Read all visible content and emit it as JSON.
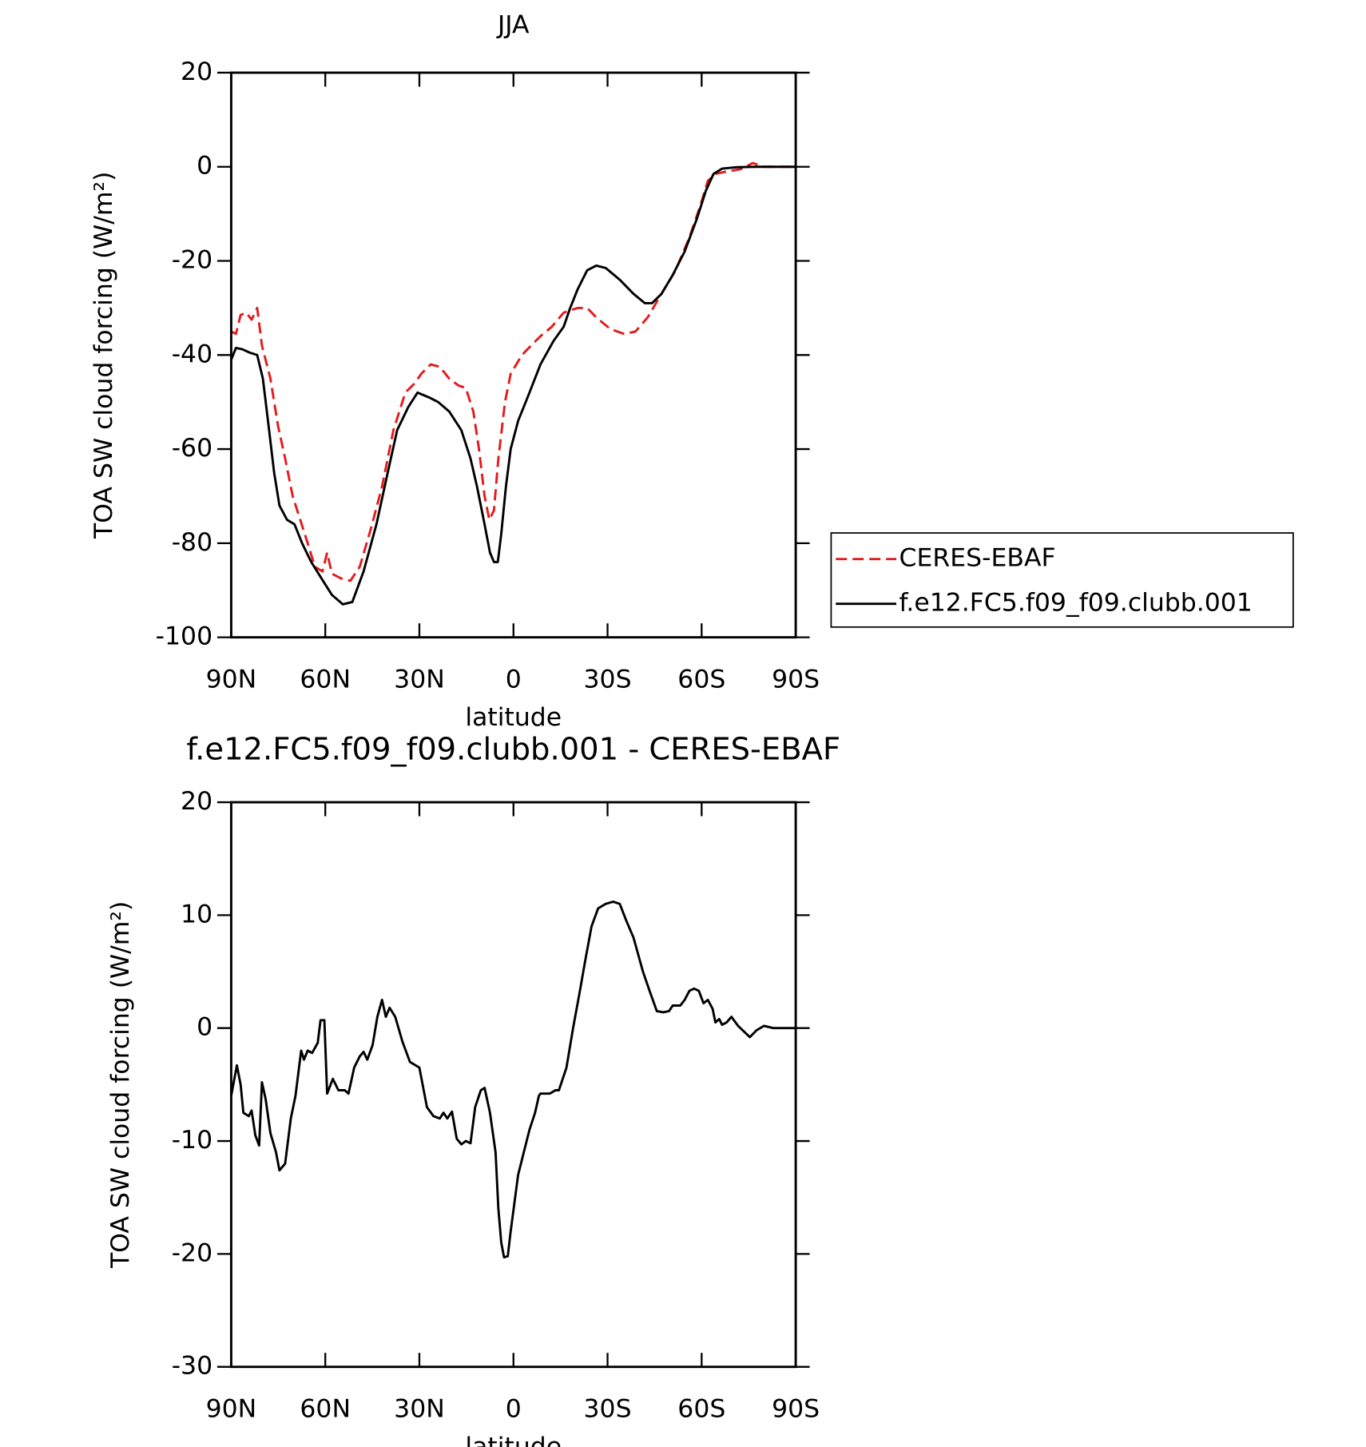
{
  "chart_data": [
    {
      "type": "line",
      "title": "JJA",
      "xlabel": "latitude",
      "ylabel": "TOA SW cloud forcing (W/m²)",
      "xlim": [
        90,
        -90
      ],
      "xticks": [
        {
          "value": 90,
          "label": "90N"
        },
        {
          "value": 60,
          "label": "60N"
        },
        {
          "value": 30,
          "label": "30N"
        },
        0,
        {
          "value": -30,
          "label": "30S"
        },
        {
          "value": -60,
          "label": "60S"
        },
        {
          "value": -90,
          "label": "90S"
        }
      ],
      "ylim": [
        -100,
        20
      ],
      "yticks": [
        -100,
        -80,
        -60,
        -40,
        -20,
        0,
        20
      ],
      "legend": "right",
      "series": [
        {
          "name": "CERES-EBAF",
          "color": "#e41a1c",
          "linestyle": "dashed",
          "x": [
            90,
            88.5,
            87,
            85.2,
            83.5,
            81.7,
            80.2,
            77.5,
            75.1,
            72.8,
            70.4,
            68,
            65.6,
            63.3,
            60.9,
            59.4,
            57.9,
            54.9,
            52,
            49,
            45.5,
            41.9,
            38.3,
            34.5,
            31.5,
            29.4,
            26.4,
            23.5,
            20.5,
            17.5,
            15.2,
            12.8,
            11,
            9.2,
            7.7,
            6.2,
            4.8,
            2.7,
            0.9,
            -2.7,
            -5.6,
            -8.6,
            -12.2,
            -16,
            -20.5,
            -23.5,
            -26.4,
            -30.9,
            -35.3,
            -38.9,
            -42.8,
            -47.2,
            -51.7,
            -56.1,
            -59.7,
            -62,
            -64.4,
            -68,
            -72.5,
            -76.3,
            -79.9,
            -90
          ],
          "values": [
            -35,
            -35.5,
            -31.5,
            -31,
            -32.5,
            -30,
            -38,
            -45,
            -55,
            -62,
            -70,
            -75,
            -80,
            -85,
            -86,
            -82,
            -86.5,
            -87.5,
            -88,
            -85,
            -77,
            -68,
            -56,
            -48,
            -46,
            -44,
            -42,
            -42.5,
            -45,
            -46.5,
            -47,
            -52,
            -60,
            -70,
            -75,
            -73,
            -62,
            -50,
            -44,
            -40,
            -38,
            -36,
            -34,
            -31,
            -30,
            -30,
            -32,
            -34.5,
            -35.5,
            -35,
            -32,
            -27,
            -22,
            -15,
            -8,
            -3,
            -1.5,
            -1,
            -0.5,
            0.8,
            0,
            0
          ]
        },
        {
          "name": "f.e12.FC5.f09_f09.clubb.001",
          "color": "#000000",
          "linestyle": "solid",
          "x": [
            90,
            88.5,
            86.4,
            84.1,
            81.7,
            79.9,
            78.1,
            76.3,
            74.6,
            72.2,
            69.8,
            67.4,
            64.5,
            61.2,
            57.9,
            54.4,
            51.4,
            47.8,
            43.7,
            40.1,
            37.1,
            33.5,
            30.6,
            27,
            24,
            20.5,
            16.6,
            13.7,
            11.6,
            9.2,
            7.5,
            6.2,
            5,
            3.9,
            2.4,
            0.9,
            -1.5,
            -4.5,
            -8.6,
            -12.8,
            -16,
            -18.1,
            -20.5,
            -23.5,
            -26.4,
            -29.4,
            -33.9,
            -38.3,
            -41.9,
            -44.2,
            -47.2,
            -50.8,
            -54.6,
            -58.5,
            -61.4,
            -63.8,
            -66.5,
            -71,
            -77,
            -90
          ],
          "values": [
            -41,
            -38.5,
            -38.8,
            -39.5,
            -40,
            -45,
            -55,
            -65,
            -72,
            -75,
            -76,
            -80,
            -84,
            -87.5,
            -91,
            -93,
            -92.5,
            -86,
            -76,
            -65,
            -56,
            -51,
            -48,
            -49,
            -50,
            -52,
            -56,
            -62,
            -68,
            -76,
            -82,
            -84,
            -84,
            -78,
            -68,
            -60,
            -54,
            -49,
            -42,
            -37,
            -34,
            -30,
            -26,
            -22,
            -21,
            -21.5,
            -24,
            -27,
            -29,
            -29,
            -27,
            -23,
            -18,
            -11,
            -5,
            -1.5,
            -0.4,
            -0.1,
            0,
            0
          ]
        }
      ]
    },
    {
      "type": "line",
      "title": "f.e12.FC5.f09_f09.clubb.001 - CERES-EBAF",
      "xlabel": "latitude",
      "ylabel": "TOA SW cloud forcing (W/m²)",
      "xlim": [
        90,
        -90
      ],
      "xticks": [
        {
          "value": 90,
          "label": "90N"
        },
        {
          "value": 60,
          "label": "60N"
        },
        {
          "value": 30,
          "label": "30N"
        },
        0,
        {
          "value": -30,
          "label": "30S"
        },
        {
          "value": -60,
          "label": "60S"
        },
        {
          "value": -90,
          "label": "90S"
        }
      ],
      "ylim": [
        -30,
        20
      ],
      "yticks": [
        -30,
        -20,
        -10,
        0,
        10,
        20
      ],
      "color": "#000000",
      "x": [
        90,
        88.2,
        87,
        86.1,
        84.4,
        83.5,
        82.3,
        81.1,
        80.2,
        79,
        77.5,
        75.7,
        74.6,
        72.8,
        71,
        69.5,
        67.7,
        66.8,
        65.6,
        64.2,
        62.4,
        61.5,
        60.3,
        59.4,
        57.6,
        55.8,
        53.8,
        52.6,
        50.8,
        49,
        47.8,
        46.6,
        44.9,
        43.4,
        41.9,
        40.7,
        39.5,
        37.7,
        35.4,
        33,
        30,
        27.6,
        25.5,
        23.5,
        22.3,
        21.1,
        19.6,
        18.1,
        16.6,
        15.2,
        13.7,
        12.2,
        10.4,
        9.2,
        7.5,
        5.7,
        4.8,
        3.9,
        3,
        1.8,
        0.9,
        -0.3,
        -1.5,
        -3.3,
        -5.1,
        -6.9,
        -8.1,
        -8.6,
        -11.6,
        -13.4,
        -14.5,
        -16.9,
        -19,
        -21,
        -22.9,
        -24.9,
        -27,
        -29.4,
        -31.8,
        -33.9,
        -36,
        -38.3,
        -41.3,
        -43.4,
        -45.7,
        -47.8,
        -49.6,
        -50.8,
        -53.2,
        -54.6,
        -56.1,
        -57.6,
        -59.1,
        -60.6,
        -62,
        -63.5,
        -64.4,
        -65.6,
        -66.5,
        -68,
        -69.5,
        -71.6,
        -75.4,
        -77.5,
        -79.9,
        -82.8,
        -90
      ],
      "values": [
        -6,
        -3.3,
        -5,
        -7.5,
        -7.8,
        -7.3,
        -9.5,
        -10.4,
        -4.8,
        -6.3,
        -9.3,
        -11,
        -12.6,
        -12,
        -8,
        -6,
        -2,
        -2.8,
        -2,
        -2.2,
        -1.3,
        0.7,
        0.7,
        -5.8,
        -4.5,
        -5.5,
        -5.5,
        -5.8,
        -3.5,
        -2.5,
        -2.1,
        -2.8,
        -1.5,
        1,
        2.5,
        1,
        1.8,
        1,
        -1.2,
        -3,
        -3.5,
        -7,
        -7.8,
        -8,
        -7.5,
        -8,
        -7.4,
        -9.8,
        -10.3,
        -10,
        -10.2,
        -7,
        -5.5,
        -5.3,
        -7.5,
        -11,
        -16,
        -19,
        -20.3,
        -20.2,
        -18,
        -15.5,
        -13,
        -11,
        -9,
        -7.5,
        -6,
        -5.8,
        -5.8,
        -5.5,
        -5.5,
        -3.5,
        0,
        3,
        6,
        9,
        10.6,
        11,
        11.2,
        11,
        9.5,
        8,
        5,
        3.3,
        1.5,
        1.4,
        1.5,
        2,
        2,
        2.5,
        3.3,
        3.5,
        3.3,
        2.2,
        2.5,
        1.7,
        0.5,
        0.8,
        0.3,
        0.5,
        1,
        0.2,
        -0.8,
        -0.2,
        0.2,
        0,
        0
      ]
    }
  ]
}
